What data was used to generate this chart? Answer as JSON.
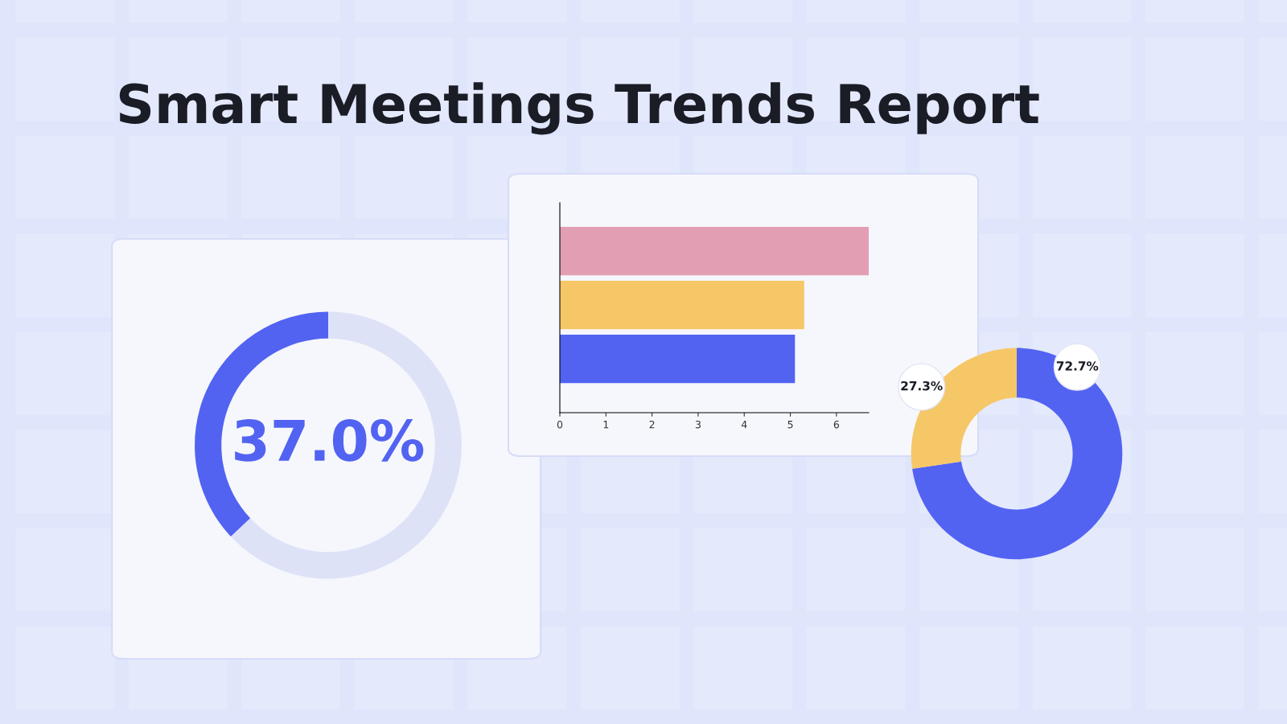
{
  "chart_data": [
    {
      "type": "donut",
      "title": "Smart Meetings Trends Report",
      "categories": [
        null,
        null
      ],
      "values": [
        37,
        63
      ],
      "colors": [
        "#5263f2",
        "#dde2f7"
      ],
      "value_labels": [
        "37.0%",
        null
      ]
    },
    {
      "type": "bar",
      "orientation": "horizontal",
      "categories": [
        null,
        null,
        null
      ],
      "values": [
        6.7,
        5.3,
        5.1
      ],
      "colors": [
        "#e29fb3",
        "#f6c766",
        "#5263f2"
      ],
      "xlim": [
        0,
        6.7
      ],
      "xticks": [
        0,
        1,
        2,
        3,
        4,
        5,
        6
      ],
      "tick_labels": "x"
    },
    {
      "type": "donut",
      "categories": [
        null,
        null
      ],
      "values": [
        72.7,
        27.3
      ],
      "colors": [
        "#5263f2",
        "#f6c766"
      ],
      "value_labels": [
        "72.7%",
        "27.3%"
      ]
    }
  ]
}
